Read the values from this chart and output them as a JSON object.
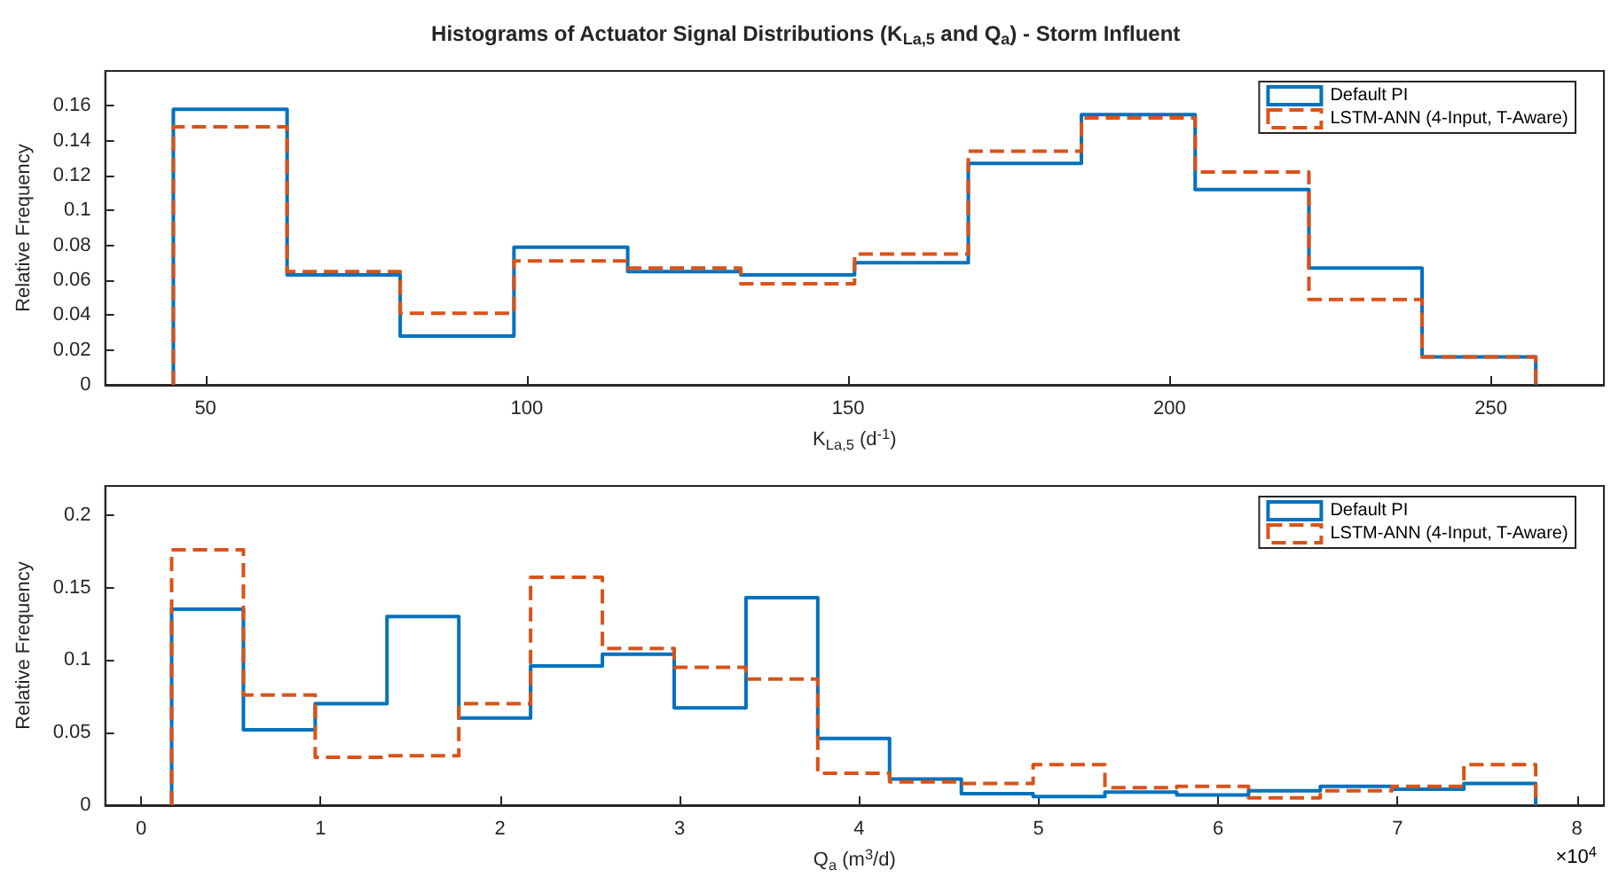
{
  "chart_data": [
    {
      "type": "histogram",
      "title": "Histograms of Actuator Signal Distributions (K$_{La,5}$ and Q$_{a}$) - Storm Influent",
      "xlabel": "K$_{La,5}$ (d$^{-1}$)",
      "ylabel": "Relative Frequency",
      "bins": [
        45,
        62.7,
        80.3,
        98,
        115.7,
        133.3,
        151,
        168.7,
        186.3,
        204,
        221.7,
        239.3,
        257
      ],
      "series": [
        {
          "name": "Default PI",
          "color": "#0072bd",
          "line_style": "solid",
          "values": [
            0.158,
            0.063,
            0.028,
            0.079,
            0.065,
            0.063,
            0.07,
            0.127,
            0.155,
            0.112,
            0.067,
            0.016
          ]
        },
        {
          "name": "LSTM-ANN (4-Input, T-Aware)",
          "color": "#d95319",
          "line_style": "dashed",
          "values": [
            0.148,
            0.065,
            0.041,
            0.071,
            0.067,
            0.058,
            0.075,
            0.134,
            0.153,
            0.122,
            0.049,
            0.016
          ]
        }
      ],
      "xlim": [
        34.4,
        267.6
      ],
      "xticks": [
        50,
        100,
        150,
        200,
        250
      ],
      "ylim": [
        0,
        0.18
      ],
      "yticks": [
        0,
        0.02,
        0.04,
        0.06,
        0.08,
        0.1,
        0.12,
        0.14,
        0.16
      ],
      "grid": false,
      "legend": "top right"
    },
    {
      "type": "histogram",
      "xlabel": "Q$_{a}$ (m$^{3}$/d)",
      "ylabel": "Relative Frequency",
      "annotations": [
        "×10$^{4}$"
      ],
      "bins": [
        0.17,
        0.57,
        0.97,
        1.37,
        1.77,
        2.17,
        2.57,
        2.97,
        3.37,
        3.77,
        4.17,
        4.57,
        4.97,
        5.37,
        5.77,
        6.17,
        6.57,
        6.97,
        7.37,
        7.77
      ],
      "series": [
        {
          "name": "Default PI",
          "color": "#0072bd",
          "line_style": "solid",
          "values": [
            0.135,
            0.052,
            0.07,
            0.13,
            0.06,
            0.096,
            0.104,
            0.067,
            0.143,
            0.046,
            0.018,
            0.008,
            0.006,
            0.009,
            0.007,
            0.01,
            0.013,
            0.011,
            0.015
          ]
        },
        {
          "name": "LSTM-ANN (4-Input, T-Aware)",
          "color": "#d95319",
          "line_style": "dashed",
          "values": [
            0.176,
            0.076,
            0.033,
            0.034,
            0.07,
            0.157,
            0.108,
            0.095,
            0.087,
            0.022,
            0.016,
            0.015,
            0.028,
            0.012,
            0.013,
            0.005,
            0.01,
            0.013,
            0.028
          ]
        }
      ],
      "xlim": [
        -0.2,
        8.15
      ],
      "xticks": [
        0,
        1,
        2,
        3,
        4,
        5,
        6,
        7,
        8
      ],
      "ylim": [
        0,
        0.22
      ],
      "yticks": [
        0,
        0.05,
        0.1,
        0.15,
        0.2
      ],
      "grid": false,
      "legend": "top right"
    }
  ]
}
